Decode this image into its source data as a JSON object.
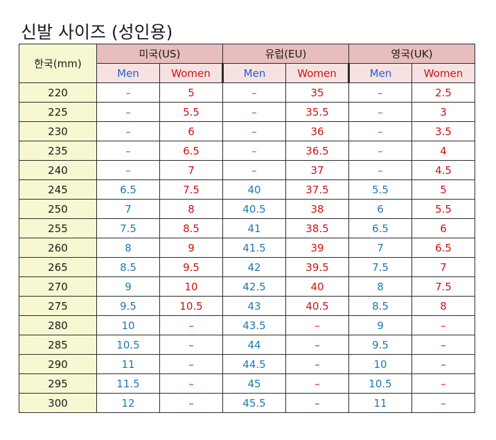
{
  "title": "신발 사이즈 (성인용)",
  "korea_header": "한국(mm)",
  "regions": [
    {
      "name": "미국(US)",
      "men": "Men",
      "women": "Women"
    },
    {
      "name": "유럽(EU)",
      "men": "Men",
      "women": "Women"
    },
    {
      "name": "영국(UK)",
      "men": "Men",
      "women": "Women"
    }
  ],
  "rows": [
    {
      "kr": "220",
      "us_men": "–",
      "us_women": "5",
      "eu_men": "–",
      "eu_women": "35",
      "uk_men": "–",
      "uk_women": "2.5"
    },
    {
      "kr": "225",
      "us_men": "–",
      "us_women": "5.5",
      "eu_men": "–",
      "eu_women": "35.5",
      "uk_men": "–",
      "uk_women": "3"
    },
    {
      "kr": "230",
      "us_men": "–",
      "us_women": "6",
      "eu_men": "–",
      "eu_women": "36",
      "uk_men": "–",
      "uk_women": "3.5"
    },
    {
      "kr": "235",
      "us_men": "–",
      "us_women": "6.5",
      "eu_men": "–",
      "eu_women": "36.5",
      "uk_men": "–",
      "uk_women": "4"
    },
    {
      "kr": "240",
      "us_men": "–",
      "us_women": "7",
      "eu_men": "–",
      "eu_women": "37",
      "uk_men": "–",
      "uk_women": "4.5"
    },
    {
      "kr": "245",
      "us_men": "6.5",
      "us_women": "7.5",
      "eu_men": "40",
      "eu_women": "37.5",
      "uk_men": "5.5",
      "uk_women": "5"
    },
    {
      "kr": "250",
      "us_men": "7",
      "us_women": "8",
      "eu_men": "40.5",
      "eu_women": "38",
      "uk_men": "6",
      "uk_women": "5.5"
    },
    {
      "kr": "255",
      "us_men": "7.5",
      "us_women": "8.5",
      "eu_men": "41",
      "eu_women": "38.5",
      "uk_men": "6.5",
      "uk_women": "6"
    },
    {
      "kr": "260",
      "us_men": "8",
      "us_women": "9",
      "eu_men": "41.5",
      "eu_women": "39",
      "uk_men": "7",
      "uk_women": "6.5"
    },
    {
      "kr": "265",
      "us_men": "8.5",
      "us_women": "9.5",
      "eu_men": "42",
      "eu_women": "39.5",
      "uk_men": "7.5",
      "uk_women": "7"
    },
    {
      "kr": "270",
      "us_men": "9",
      "us_women": "10",
      "eu_men": "42.5",
      "eu_women": "40",
      "uk_men": "8",
      "uk_women": "7.5"
    },
    {
      "kr": "275",
      "us_men": "9.5",
      "us_women": "10.5",
      "eu_men": "43",
      "eu_women": "40.5",
      "uk_men": "8.5",
      "uk_women": "8"
    },
    {
      "kr": "280",
      "us_men": "10",
      "us_women": "–",
      "eu_men": "43.5",
      "eu_women": "–",
      "uk_men": "9",
      "uk_women": "–"
    },
    {
      "kr": "285",
      "us_men": "10.5",
      "us_women": "–",
      "eu_men": "44",
      "eu_women": "–",
      "uk_men": "9.5",
      "uk_women": "–"
    },
    {
      "kr": "290",
      "us_men": "11",
      "us_women": "–",
      "eu_men": "44.5",
      "eu_women": "–",
      "uk_men": "10",
      "uk_women": "–"
    },
    {
      "kr": "295",
      "us_men": "11.5",
      "us_women": "–",
      "eu_men": "45",
      "eu_women": "–",
      "uk_men": "10.5",
      "uk_women": "–"
    },
    {
      "kr": "300",
      "us_men": "12",
      "us_women": "–",
      "eu_men": "45.5",
      "eu_women": "–",
      "uk_men": "11",
      "uk_women": "–"
    }
  ]
}
